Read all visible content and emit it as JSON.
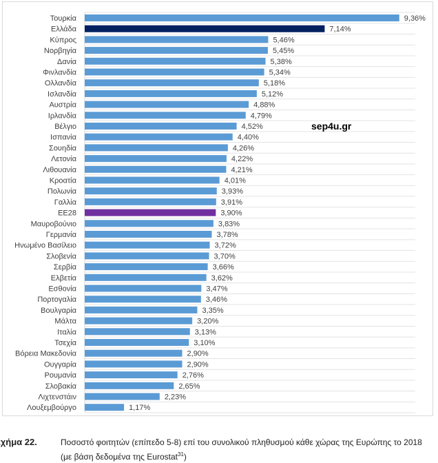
{
  "chart_data": {
    "type": "bar",
    "orientation": "horizontal",
    "categories": [
      "Τουρκία",
      "Ελλάδα",
      "Κύπρος",
      "Νορβηγία",
      "Δανία",
      "Φινλανδία",
      "Ολλανδία",
      "Ισλανδία",
      "Αυστρία",
      "Ιρλανδία",
      "Βέλγιο",
      "Ισπανία",
      "Σουηδία",
      "Λετονία",
      "Λιθουανία",
      "Κροατία",
      "Πολωνία",
      "Γαλλία",
      "ΕΕ28",
      "Μαυροβούνιο",
      "Γερμανία",
      "Ηνωμένο Βασίλειο",
      "Σλοβενία",
      "Σερβία",
      "Ελβετία",
      "Εσθονία",
      "Πορτογαλία",
      "Βουλγαρία",
      "Μάλτα",
      "Ιταλία",
      "Τσεχία",
      "Βόρεια Μακεδονία",
      "Ουγγαρία",
      "Ρουμανία",
      "Σλοβακία",
      "Λιχτενστάιν",
      "Λουξεμβούργο"
    ],
    "values": [
      9.36,
      7.14,
      5.46,
      5.45,
      5.38,
      5.34,
      5.18,
      5.12,
      4.88,
      4.79,
      4.52,
      4.4,
      4.26,
      4.22,
      4.21,
      4.01,
      3.93,
      3.91,
      3.9,
      3.83,
      3.78,
      3.72,
      3.7,
      3.66,
      3.62,
      3.47,
      3.46,
      3.35,
      3.2,
      3.13,
      3.1,
      2.9,
      2.9,
      2.76,
      2.65,
      2.23,
      1.17
    ],
    "data_labels": [
      "9,36%",
      "7,14%",
      "5,46%",
      "5,45%",
      "5,38%",
      "5,34%",
      "5,18%",
      "5,12%",
      "4,88%",
      "4,79%",
      "4,52%",
      "4,40%",
      "4,26%",
      "4,22%",
      "4,21%",
      "4,01%",
      "3,93%",
      "3,91%",
      "3,90%",
      "3,83%",
      "3,78%",
      "3,72%",
      "3,70%",
      "3,66%",
      "3,62%",
      "3,47%",
      "3,46%",
      "3,35%",
      "3,20%",
      "3,13%",
      "3,10%",
      "2,90%",
      "2,90%",
      "2,76%",
      "2,65%",
      "2,23%",
      "1,17%"
    ],
    "unit": "%",
    "grid": true,
    "colors": {
      "default": "#5b9bd5",
      "Ελλάδα": "#002060",
      "ΕΕ28": "#7030a0"
    }
  },
  "watermark": "sep4u.gr",
  "caption": {
    "number": "Σχήμα 22.",
    "text": "Ποσοστό φοιτητών (επίπεδο 5-8) επί του συνολικού πληθυσμού κάθε χώρας της Ευρώπης το 2018 (με βάση δεδομένα της Eurostat",
    "footnote": "31",
    "close": ")"
  }
}
